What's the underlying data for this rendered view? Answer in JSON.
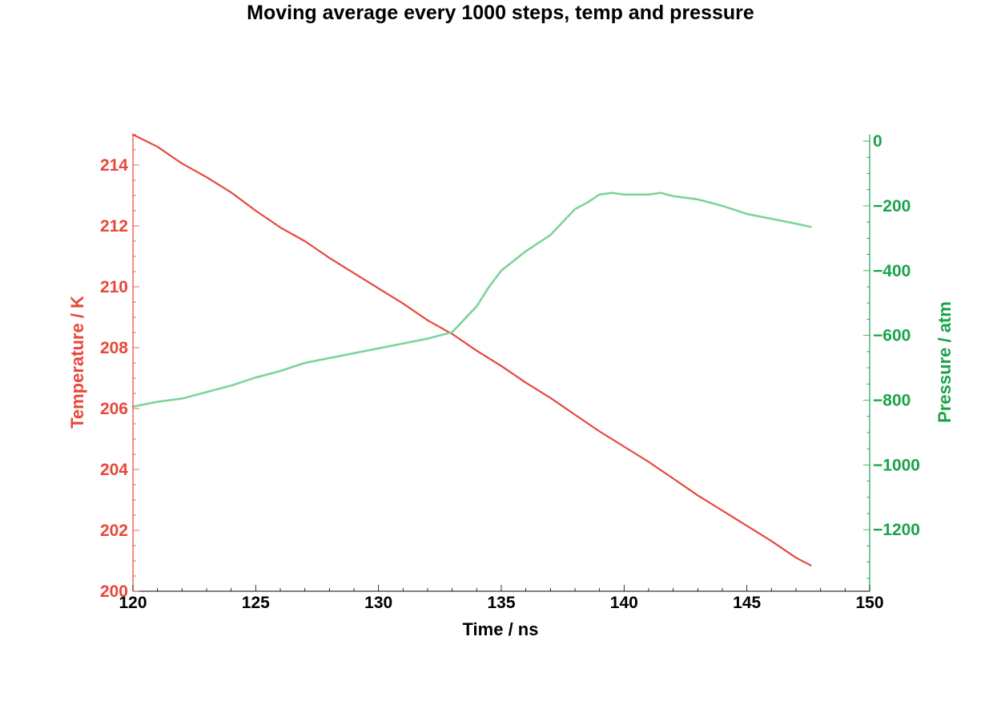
{
  "chart_data": {
    "type": "line",
    "title": "Moving average every 1000 steps, temp and pressure",
    "xlabel": "Time / ns",
    "ylabel_left": "Temperature / K",
    "ylabel_right": "Pressure / atm",
    "xlim": [
      120,
      150
    ],
    "ylim_left": [
      200,
      215
    ],
    "ylim_right": [
      -1390,
      20
    ],
    "x_ticks": [
      120,
      125,
      130,
      135,
      140,
      145,
      150
    ],
    "y_left_ticks": [
      200,
      202,
      204,
      206,
      208,
      210,
      212,
      214
    ],
    "y_right_ticks": [
      0,
      -200,
      -400,
      -600,
      -800,
      -1000,
      -1200
    ],
    "y_right_tick_labels": [
      "0",
      "−200",
      "−400",
      "−600",
      "−800",
      "−1000",
      "−1200"
    ],
    "grid": false,
    "colors": {
      "temperature": "#e8473a",
      "pressure": "#7ed39b",
      "left_axis": "#e8473a",
      "right_axis": "#1aa34a",
      "bottom_axis": "#000000"
    },
    "series": [
      {
        "axis": "left",
        "color": "#e8473a",
        "x": [
          120,
          121,
          122,
          123,
          124,
          125,
          126,
          127,
          128,
          129,
          130,
          131,
          132,
          133,
          134,
          135,
          136,
          137,
          138,
          139,
          140,
          141,
          142,
          143,
          144,
          145,
          146,
          147,
          147.6
        ],
        "y": [
          215.0,
          214.6,
          214.05,
          213.6,
          213.1,
          212.5,
          211.95,
          211.5,
          210.95,
          210.45,
          209.95,
          209.45,
          208.9,
          208.45,
          207.9,
          207.4,
          206.85,
          206.35,
          205.8,
          205.25,
          204.75,
          204.25,
          203.7,
          203.15,
          202.65,
          202.15,
          201.65,
          201.1,
          200.85
        ]
      },
      {
        "axis": "right",
        "color": "#7ed39b",
        "x": [
          120,
          121,
          122,
          123,
          124,
          125,
          126,
          127,
          128,
          129,
          130,
          131,
          132,
          132.5,
          133,
          133.5,
          134,
          134.5,
          135,
          136,
          137,
          138,
          138.5,
          139,
          139.5,
          140,
          141,
          141.5,
          142,
          143,
          144,
          145,
          146,
          147,
          147.6
        ],
        "y": [
          -820,
          -805,
          -795,
          -775,
          -755,
          -730,
          -710,
          -685,
          -670,
          -655,
          -640,
          -625,
          -610,
          -600,
          -590,
          -550,
          -510,
          -450,
          -400,
          -340,
          -290,
          -210,
          -190,
          -165,
          -160,
          -165,
          -165,
          -160,
          -170,
          -180,
          -200,
          -225,
          -240,
          -255,
          -265
        ]
      }
    ]
  }
}
